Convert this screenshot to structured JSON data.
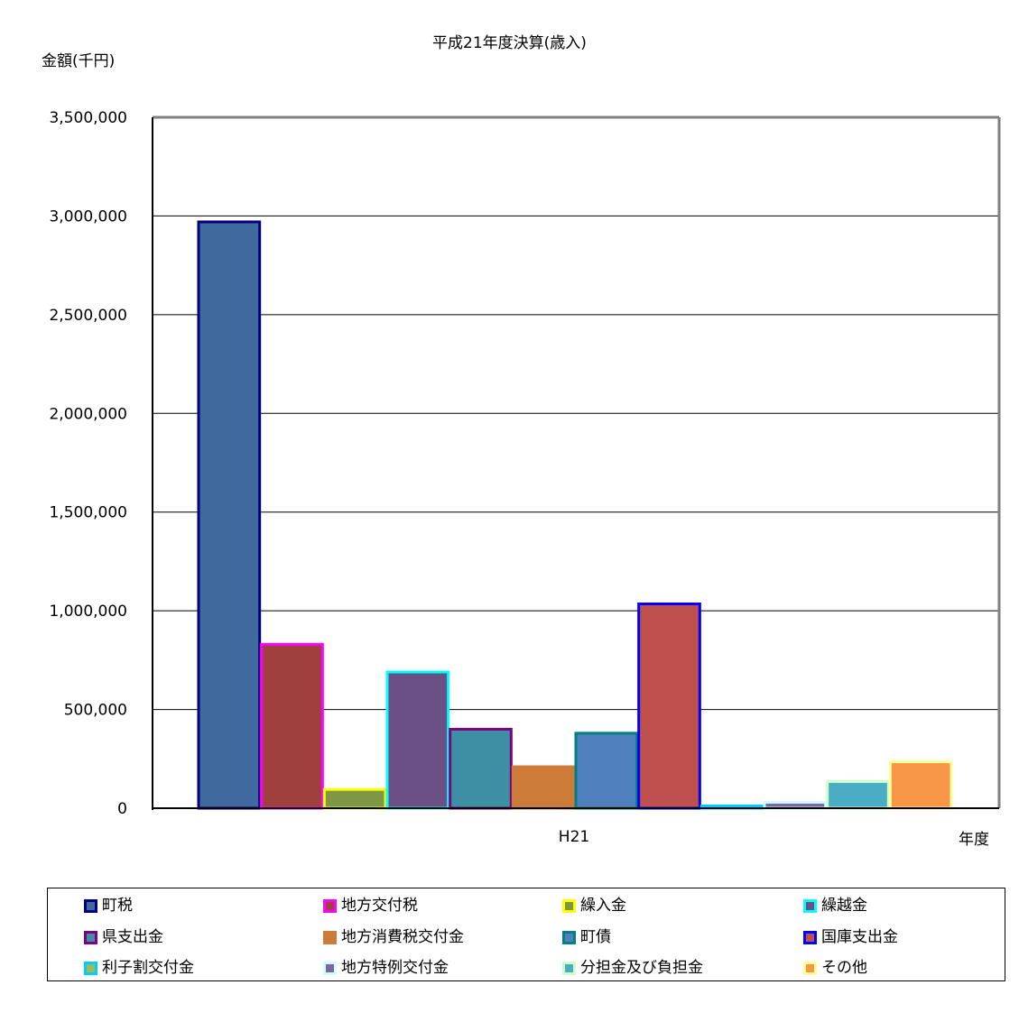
{
  "chart_data": {
    "type": "bar",
    "title": "平成21年度決算(歳入)",
    "ylabel": "金額(千円)",
    "xlabel": "年度",
    "categories": [
      "H21"
    ],
    "ylim": [
      0,
      3500000
    ],
    "yticks": [
      0,
      500000,
      1000000,
      1500000,
      2000000,
      2500000,
      3000000,
      3500000
    ],
    "ytick_labels": [
      "0",
      "500,000",
      "1,000,000",
      "1,500,000",
      "2,000,000",
      "2,500,000",
      "3,000,000",
      "3,500,000"
    ],
    "grid": true,
    "legend_position": "bottom",
    "series": [
      {
        "name": "町税",
        "values": [
          2970000
        ],
        "fill": "#406a9e",
        "edge": "#000080"
      },
      {
        "name": "地方交付税",
        "values": [
          830000
        ],
        "fill": "#a0403e",
        "edge": "#ff00ff"
      },
      {
        "name": "繰入金",
        "values": [
          95000
        ],
        "fill": "#7f9645",
        "edge": "#ffff00"
      },
      {
        "name": "繰越金",
        "values": [
          690000
        ],
        "fill": "#6a5084",
        "edge": "#00ffff"
      },
      {
        "name": "県支出金",
        "values": [
          400000
        ],
        "fill": "#3d8fa3",
        "edge": "#800080"
      },
      {
        "name": "地方消費税交付金",
        "values": [
          210000
        ],
        "fill": "#cc7b39",
        "edge": "#cc7b39"
      },
      {
        "name": "町債",
        "values": [
          380000
        ],
        "fill": "#4f80bd",
        "edge": "#008080"
      },
      {
        "name": "国庫支出金",
        "values": [
          1035000
        ],
        "fill": "#c0504d",
        "edge": "#0000ff"
      },
      {
        "name": "利子割交付金",
        "values": [
          12000
        ],
        "fill": "#9bbb59",
        "edge": "#00ccff"
      },
      {
        "name": "地方特例交付金",
        "values": [
          30000
        ],
        "fill": "#8064a2",
        "edge": "#ccffff"
      },
      {
        "name": "分担金及び負担金",
        "values": [
          135000
        ],
        "fill": "#4bacc6",
        "edge": "#ccffcc"
      },
      {
        "name": "その他",
        "values": [
          235000
        ],
        "fill": "#f79646",
        "edge": "#ffff99"
      }
    ]
  }
}
